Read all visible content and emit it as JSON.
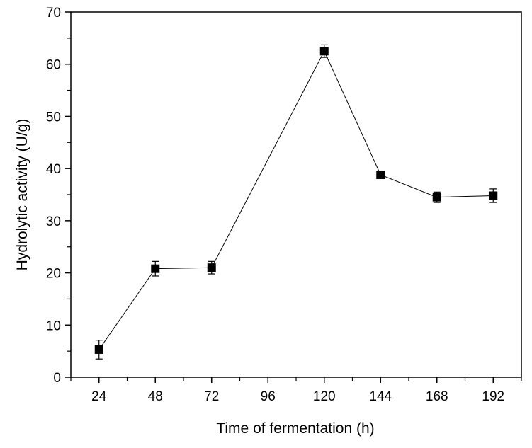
{
  "chart_data": {
    "type": "line",
    "title": "",
    "xlabel": "Time of fermentation (h)",
    "ylabel": "Hydrolytic activity (U/g)",
    "x": [
      24,
      48,
      72,
      96,
      120,
      144,
      168,
      192
    ],
    "xticks": [
      "24",
      "48",
      "72",
      "96",
      "120",
      "144",
      "168",
      "192"
    ],
    "yticks": [
      "0",
      "10",
      "20",
      "30",
      "40",
      "50",
      "60",
      "70"
    ],
    "xlim": [
      12,
      204
    ],
    "ylim": [
      0,
      70
    ],
    "grid": false,
    "series": [
      {
        "marker": "square",
        "color": "#000000",
        "points": [
          {
            "x": 24,
            "y": 5.3,
            "err": 1.8
          },
          {
            "x": 48,
            "y": 20.8,
            "err": 1.4
          },
          {
            "x": 72,
            "y": 21.0,
            "err": 1.2
          },
          {
            "x": 120,
            "y": 62.5,
            "err": 1.2
          },
          {
            "x": 144,
            "y": 38.8,
            "err": 0.7
          },
          {
            "x": 168,
            "y": 34.5,
            "err": 1.0
          },
          {
            "x": 192,
            "y": 34.8,
            "err": 1.3
          }
        ]
      }
    ]
  }
}
